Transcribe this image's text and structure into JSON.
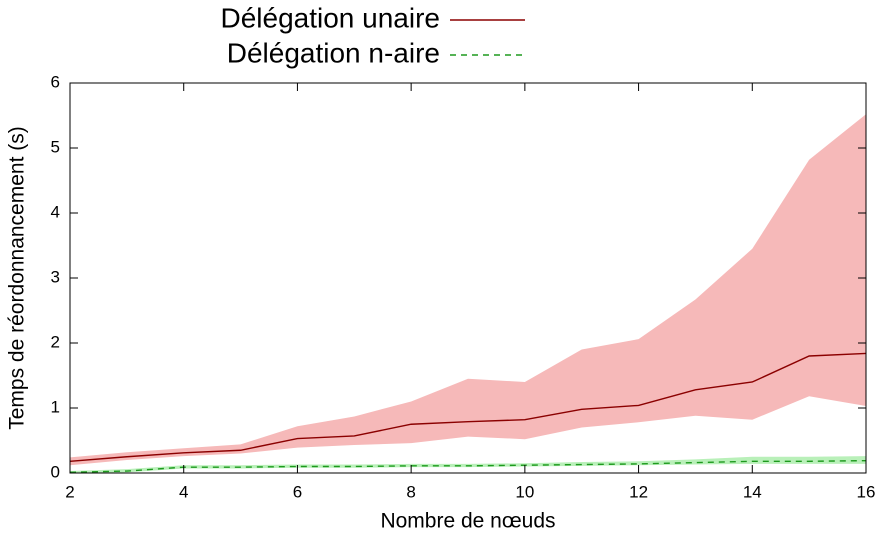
{
  "chart_data": {
    "type": "line",
    "xlabel": "Nombre de nœuds",
    "ylabel": "Temps de réordonnancement (s)",
    "x": [
      2,
      3,
      4,
      5,
      6,
      7,
      8,
      9,
      10,
      11,
      12,
      13,
      14,
      15,
      16
    ],
    "series": [
      {
        "name": "Délégation unaire",
        "color": "#8b0000",
        "band_color": "#f6b9b9",
        "dash": false,
        "values": [
          0.18,
          0.25,
          0.31,
          0.35,
          0.53,
          0.57,
          0.75,
          0.79,
          0.82,
          0.98,
          1.04,
          1.28,
          1.4,
          1.8,
          1.84
        ],
        "upper": [
          0.24,
          0.32,
          0.38,
          0.44,
          0.72,
          0.87,
          1.1,
          1.45,
          1.4,
          1.9,
          2.06,
          2.67,
          3.45,
          4.82,
          5.52
        ],
        "lower": [
          0.12,
          0.2,
          0.26,
          0.3,
          0.39,
          0.43,
          0.46,
          0.56,
          0.52,
          0.7,
          0.78,
          0.88,
          0.82,
          1.18,
          1.03
        ]
      },
      {
        "name": "Délégation n-aire",
        "color": "#1e9a1e",
        "band_color": "#b9f0b9",
        "dash": true,
        "values": [
          0.01,
          0.03,
          0.09,
          0.09,
          0.1,
          0.1,
          0.11,
          0.11,
          0.12,
          0.13,
          0.14,
          0.16,
          0.18,
          0.18,
          0.19
        ],
        "upper": [
          0.03,
          0.06,
          0.12,
          0.12,
          0.13,
          0.13,
          0.14,
          0.14,
          0.15,
          0.17,
          0.18,
          0.21,
          0.25,
          0.25,
          0.26
        ],
        "lower": [
          0.0,
          0.01,
          0.07,
          0.07,
          0.08,
          0.08,
          0.09,
          0.09,
          0.1,
          0.11,
          0.12,
          0.13,
          0.14,
          0.14,
          0.14
        ]
      }
    ],
    "xlim": [
      2,
      16
    ],
    "xticks": [
      2,
      4,
      6,
      8,
      10,
      12,
      14,
      16
    ],
    "ylim": [
      0,
      6
    ],
    "yticks": [
      0,
      1,
      2,
      3,
      4,
      5,
      6
    ],
    "legend": "top-left"
  }
}
